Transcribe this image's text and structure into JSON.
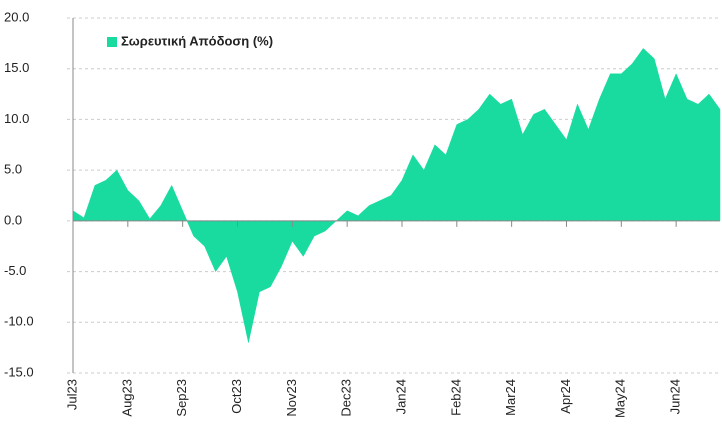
{
  "chart_data": {
    "type": "area",
    "categories": [
      "Jul23",
      null,
      null,
      null,
      null,
      "Aug23",
      null,
      null,
      null,
      null,
      "Sep23",
      null,
      null,
      null,
      null,
      "Oct23",
      null,
      null,
      null,
      null,
      "Nov23",
      null,
      null,
      null,
      null,
      "Dec23",
      null,
      null,
      null,
      null,
      "Jan24",
      null,
      null,
      null,
      null,
      "Feb24",
      null,
      null,
      null,
      null,
      "Mar24",
      null,
      null,
      null,
      null,
      "Apr24",
      null,
      null,
      null,
      null,
      "May24",
      null,
      null,
      null,
      null,
      "Jun24",
      null,
      null,
      null,
      null
    ],
    "series": [
      {
        "name": "Σωρευτική Απόδοση (%)",
        "color": "#19dba0",
        "values": [
          1.0,
          0.3,
          3.5,
          4.0,
          5.0,
          3.0,
          2.0,
          0.2,
          1.5,
          3.5,
          1.0,
          -1.5,
          -2.5,
          -5.0,
          -3.5,
          -7.0,
          -12.0,
          -7.0,
          -6.5,
          -4.5,
          -2.0,
          -3.5,
          -1.5,
          -1.0,
          0.0,
          1.0,
          0.5,
          1.5,
          2.0,
          2.5,
          4.0,
          6.5,
          5.0,
          7.5,
          6.5,
          9.5,
          10.0,
          11.0,
          12.5,
          11.5,
          12.0,
          8.5,
          10.5,
          11.0,
          9.5,
          8.0,
          11.5,
          9.0,
          12.0,
          14.5,
          14.5,
          15.5,
          17.0,
          16.0,
          12.0,
          14.5,
          12.0,
          11.5,
          12.5,
          11.0
        ]
      }
    ],
    "ylim": [
      -15,
      20
    ],
    "yticks": [
      {
        "value": -15,
        "label": "-15.0"
      },
      {
        "value": -10,
        "label": "-10.0"
      },
      {
        "value": -5,
        "label": "-5.0"
      },
      {
        "value": 0,
        "label": "0.0"
      },
      {
        "value": 5,
        "label": "5.0"
      },
      {
        "value": 10,
        "label": "10.0"
      },
      {
        "value": 15,
        "label": "15.0"
      },
      {
        "value": 20,
        "label": "20.0"
      }
    ],
    "grid": true,
    "legend": "top-left"
  }
}
